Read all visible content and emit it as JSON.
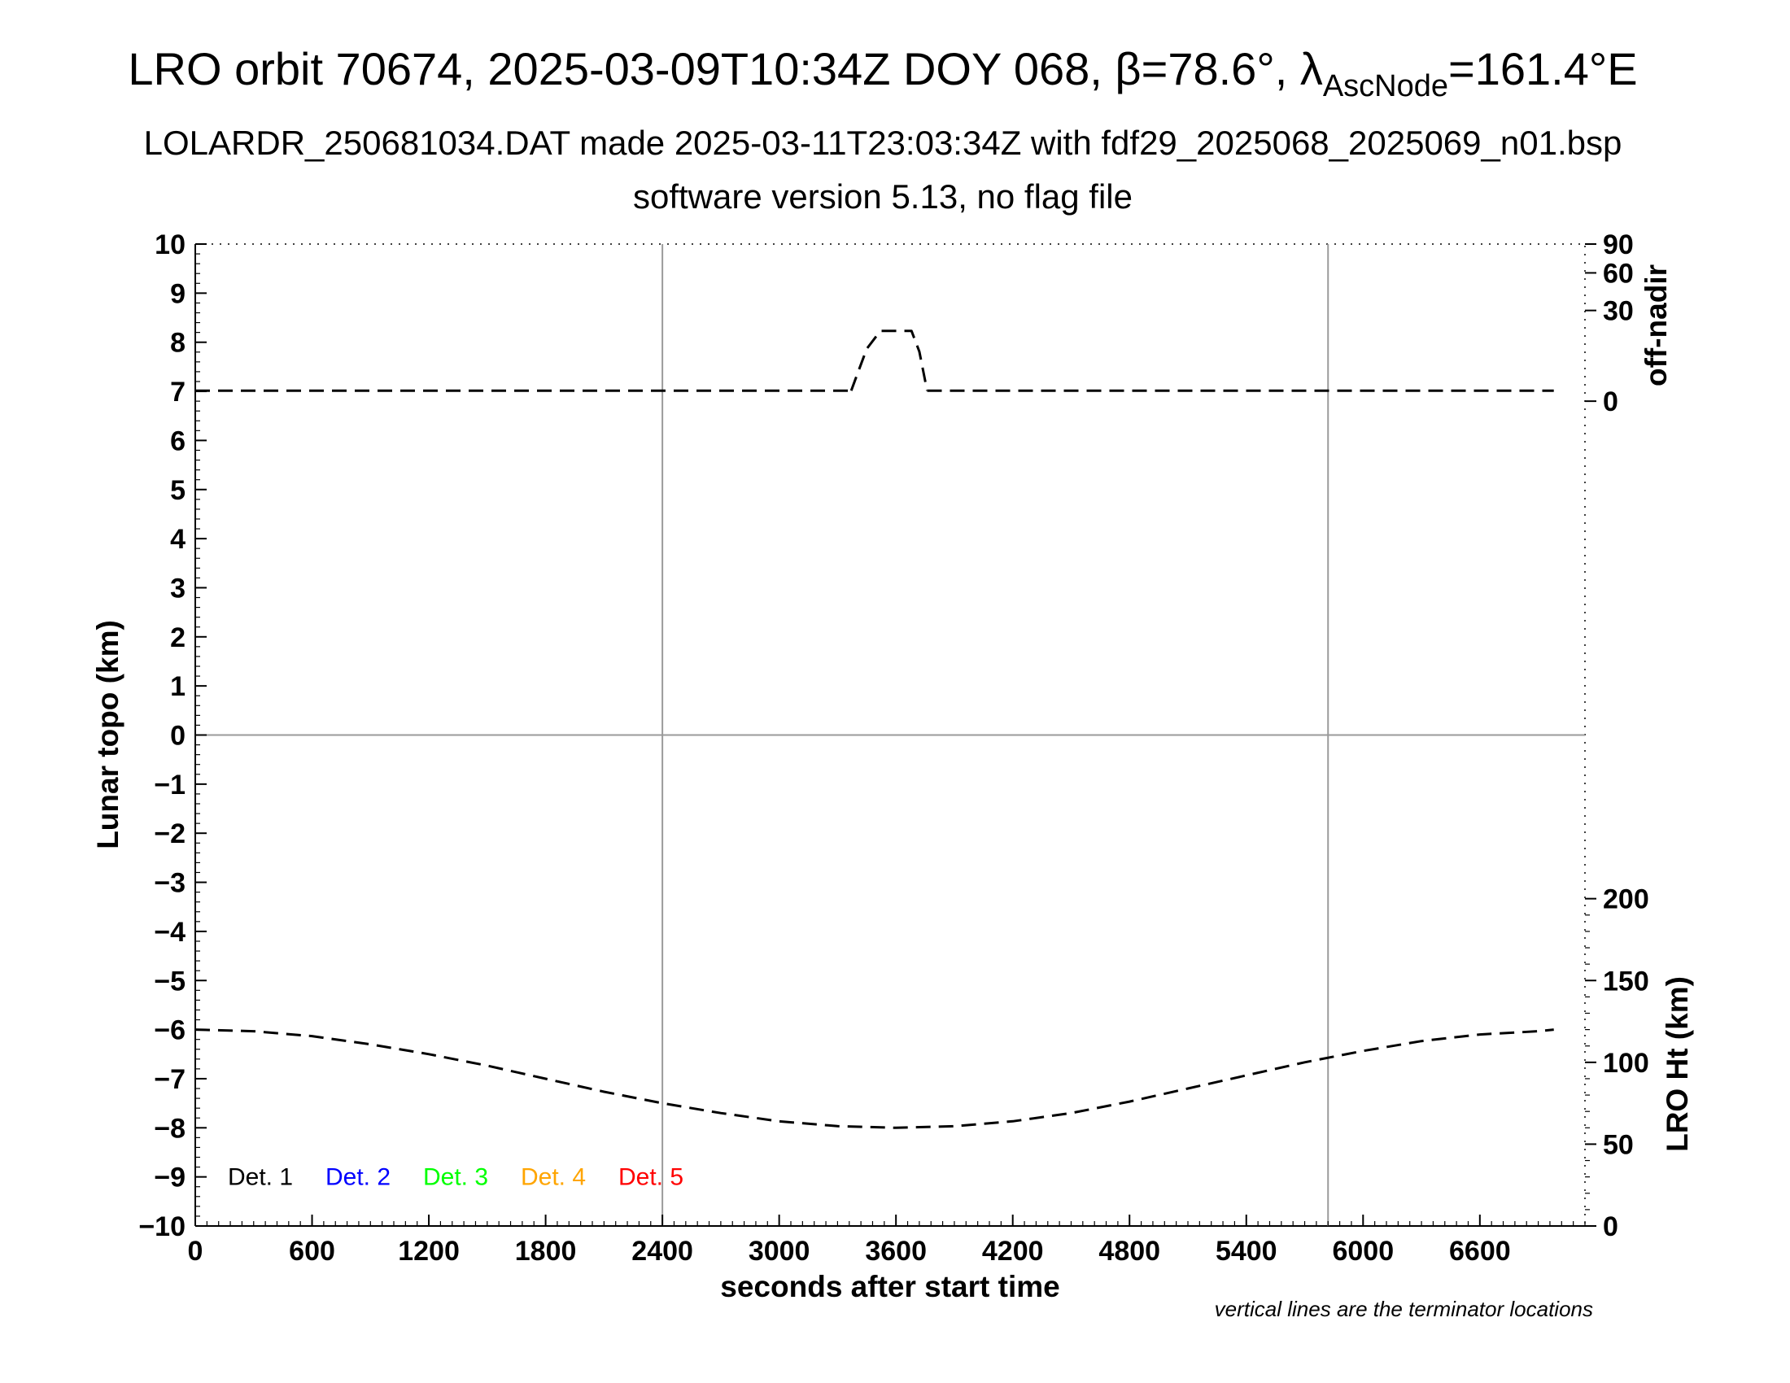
{
  "header": {
    "title_prefix": "LRO orbit 70674, 2025-03-09T10:34Z DOY 068, β=78.6°, λ",
    "title_subscript": "AscNode",
    "title_suffix": "=161.4°E",
    "subtitle_1": "LOLARDR_250681034.DAT made 2025-03-11T23:03:34Z with fdf29_2025068_2025069_n01.bsp",
    "subtitle_2": "software version 5.13, no flag file"
  },
  "note": "vertical lines are the terminator locations",
  "chart_data": {
    "type": "line",
    "xlabel": "seconds after start time",
    "ylabel": "Lunar topo (km)",
    "y2label_top": "off-nadir",
    "y2label_bottom": "LRO Ht (km)",
    "xlim": [
      0,
      7140
    ],
    "ylim": [
      -10,
      10
    ],
    "x_ticks": [
      0,
      600,
      1200,
      1800,
      2400,
      3000,
      3600,
      4200,
      4800,
      5400,
      6000,
      6600
    ],
    "y_ticks": [
      10,
      9,
      8,
      7,
      6,
      5,
      4,
      3,
      2,
      1,
      0,
      -1,
      -2,
      -3,
      -4,
      -5,
      -6,
      -7,
      -8,
      -9,
      -10
    ],
    "y_tick_labels": [
      "10",
      "9",
      "8",
      "7",
      "6",
      "5",
      "4",
      "3",
      "2",
      "1",
      "0",
      "−1",
      "−2",
      "−3",
      "−4",
      "−5",
      "−6",
      "−7",
      "−8",
      "−9",
      "−10"
    ],
    "off_nadir_ticks": [
      0,
      30,
      60,
      90
    ],
    "lro_ht_ticks": [
      0,
      50,
      100,
      150,
      200
    ],
    "off_nadir_scale": "sqrt",
    "off_nadir_range_topo": [
      6.8,
      10
    ],
    "lro_ht_range_topo": [
      -10,
      0
    ],
    "lro_ht_max": 300,
    "terminator_lines_x": [
      2400,
      5820
    ],
    "zero_line": 0,
    "legend": [
      {
        "label": "Det. 1",
        "color": "#000000"
      },
      {
        "label": "Det. 2",
        "color": "#0000ff"
      },
      {
        "label": "Det. 3",
        "color": "#00ff00"
      },
      {
        "label": "Det. 4",
        "color": "#ffa500"
      },
      {
        "label": "Det. 5",
        "color": "#ff0000"
      }
    ],
    "series": [
      {
        "axis": "off-nadir (deg)",
        "style": "dashed",
        "color": "#000000",
        "segments": [
          {
            "x": [
              0,
              600,
              1200,
              1800,
              2400,
              3000,
              3370
            ],
            "y": [
              0.4,
              0.4,
              0.4,
              0.4,
              0.4,
              0.4,
              0.4
            ]
          },
          {
            "x": [
              3370,
              3400,
              3450,
              3520,
              3600,
              3680,
              3720,
              3760
            ],
            "y": [
              0.4,
              2.5,
              10,
              18,
              18,
              18,
              9,
              0.4
            ]
          },
          {
            "x": [
              3760,
              4200,
              4800,
              5400,
              6000,
              6600,
              6980
            ],
            "y": [
              0.4,
              0.4,
              0.4,
              0.4,
              0.4,
              0.4,
              0.4
            ]
          }
        ]
      },
      {
        "axis": "LRO Ht (km)",
        "style": "dashed",
        "color": "#000000",
        "segments": [
          {
            "x": [
              0,
              300,
              600,
              900,
              1200,
              1500,
              1800,
              2100,
              2400,
              2700,
              3000,
              3300,
              3600,
              3900,
              4200,
              4500,
              4800,
              5100,
              5400,
              5700,
              6000,
              6300,
              6600,
              6900,
              6980
            ],
            "y": [
              120,
              119,
              116,
              111,
              105,
              98,
              90,
              82,
              75,
              69,
              64,
              61,
              60,
              61,
              64,
              69,
              76,
              84,
              92,
              100,
              107,
              113,
              117,
              119,
              120
            ]
          }
        ]
      }
    ]
  }
}
